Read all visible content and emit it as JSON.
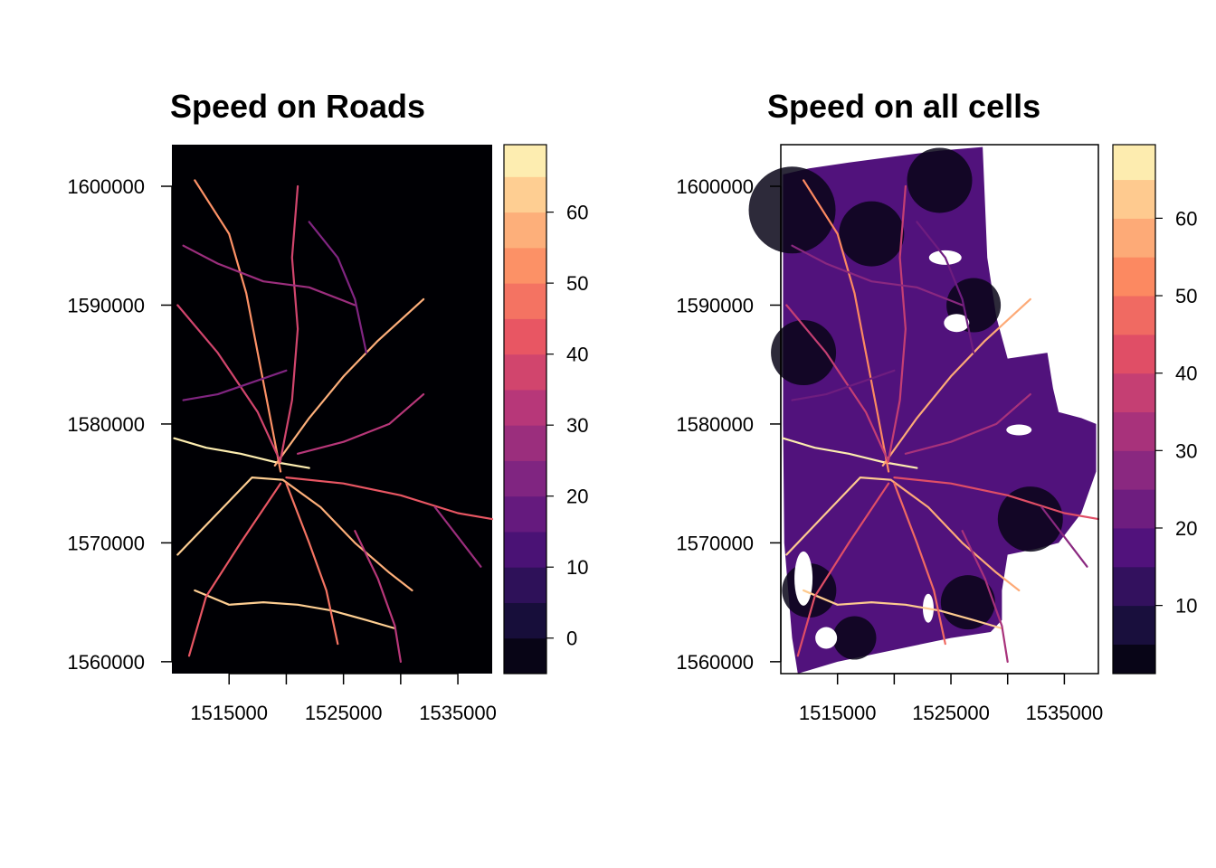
{
  "chart_data": [
    {
      "type": "heatmap",
      "title": "Speed on Roads",
      "xlabel": "",
      "ylabel": "",
      "x_ticks": [
        1515000,
        1525000,
        1535000
      ],
      "y_ticks": [
        1560000,
        1570000,
        1580000,
        1590000,
        1600000
      ],
      "x_tick_labels": [
        "1515000",
        "1525000",
        "1535000"
      ],
      "y_tick_labels": [
        "1560000",
        "1570000",
        "1580000",
        "1590000",
        "1600000"
      ],
      "xlim": [
        1510000,
        1538000
      ],
      "ylim": [
        1559000,
        1603500
      ],
      "background": "#000004",
      "legend": {
        "placement": "right",
        "range": [
          -5,
          69.5
        ],
        "breaks": [
          -5,
          0,
          5,
          10,
          15,
          20,
          25,
          30,
          35,
          40,
          45,
          50,
          55,
          60,
          65,
          69.5
        ],
        "tick_values": [
          0,
          10,
          20,
          30,
          40,
          50,
          60
        ],
        "tick_labels": [
          "0",
          "10",
          "20",
          "30",
          "40",
          "50",
          "60"
        ]
      },
      "raster": {
        "roads": [
          {
            "speed": 65,
            "points": [
              [
                1510200,
                1578800
              ],
              [
                1513000,
                1578000
              ],
              [
                1516000,
                1577500
              ],
              [
                1519000,
                1576800
              ],
              [
                1522000,
                1576300
              ]
            ]
          },
          {
            "speed": 60,
            "points": [
              [
                1510500,
                1569000
              ],
              [
                1514000,
                1572500
              ],
              [
                1517000,
                1575500
              ],
              [
                1519700,
                1575300
              ]
            ]
          },
          {
            "speed": 62,
            "points": [
              [
                1512000,
                1566000
              ],
              [
                1515000,
                1564800
              ],
              [
                1518000,
                1565000
              ],
              [
                1521000,
                1564800
              ],
              [
                1524000,
                1564300
              ],
              [
                1527000,
                1563500
              ],
              [
                1529500,
                1562800
              ]
            ]
          },
          {
            "speed": 55,
            "points": [
              [
                1519700,
                1575300
              ],
              [
                1523000,
                1573000
              ],
              [
                1526000,
                1570000
              ],
              [
                1529000,
                1567500
              ],
              [
                1531000,
                1566000
              ]
            ]
          },
          {
            "speed": 55,
            "points": [
              [
                1519000,
                1576500
              ],
              [
                1522000,
                1580500
              ],
              [
                1525000,
                1584000
              ],
              [
                1528000,
                1587000
              ],
              [
                1532000,
                1590500
              ]
            ]
          },
          {
            "speed": 50,
            "points": [
              [
                1519500,
                1576000
              ],
              [
                1518500,
                1581000
              ],
              [
                1517500,
                1586000
              ],
              [
                1516500,
                1591000
              ],
              [
                1515000,
                1596000
              ],
              [
                1512000,
                1600500
              ]
            ]
          },
          {
            "speed": 45,
            "points": [
              [
                1520000,
                1575000
              ],
              [
                1522000,
                1570000
              ],
              [
                1523500,
                1566000
              ],
              [
                1524500,
                1561500
              ]
            ]
          },
          {
            "speed": 40,
            "points": [
              [
                1519500,
                1575000
              ],
              [
                1516000,
                1570000
              ],
              [
                1513000,
                1565500
              ],
              [
                1511500,
                1560500
              ]
            ]
          },
          {
            "speed": 40,
            "points": [
              [
                1520000,
                1575500
              ],
              [
                1525000,
                1575000
              ],
              [
                1530000,
                1574000
              ],
              [
                1535000,
                1572500
              ],
              [
                1538000,
                1572000
              ]
            ]
          },
          {
            "speed": 35,
            "points": [
              [
                1519500,
                1577000
              ],
              [
                1520500,
                1582000
              ],
              [
                1521000,
                1588000
              ],
              [
                1520500,
                1594000
              ],
              [
                1521000,
                1600000
              ]
            ]
          },
          {
            "speed": 35,
            "points": [
              [
                1510500,
                1590000
              ],
              [
                1514000,
                1586000
              ],
              [
                1517500,
                1581000
              ],
              [
                1519500,
                1576800
              ]
            ]
          },
          {
            "speed": 30,
            "points": [
              [
                1521000,
                1577500
              ],
              [
                1525000,
                1578500
              ],
              [
                1529000,
                1580000
              ],
              [
                1532000,
                1582500
              ]
            ]
          },
          {
            "speed": 30,
            "points": [
              [
                1526000,
                1571000
              ],
              [
                1528000,
                1567000
              ],
              [
                1529500,
                1563000
              ],
              [
                1530000,
                1560000
              ]
            ]
          },
          {
            "speed": 25,
            "points": [
              [
                1511000,
                1595000
              ],
              [
                1514000,
                1593500
              ],
              [
                1518000,
                1592000
              ],
              [
                1522000,
                1591500
              ],
              [
                1526000,
                1590000
              ]
            ]
          },
          {
            "speed": 25,
            "points": [
              [
                1533000,
                1573000
              ],
              [
                1535000,
                1570500
              ],
              [
                1537000,
                1568000
              ]
            ]
          },
          {
            "speed": 20,
            "points": [
              [
                1511000,
                1582000
              ],
              [
                1514000,
                1582500
              ],
              [
                1517000,
                1583500
              ],
              [
                1520000,
                1584500
              ]
            ]
          },
          {
            "speed": 20,
            "points": [
              [
                1522000,
                1597000
              ],
              [
                1524500,
                1594000
              ],
              [
                1526000,
                1590500
              ],
              [
                1527000,
                1586000
              ]
            ]
          }
        ]
      }
    },
    {
      "type": "heatmap",
      "title": "Speed on all cells",
      "xlabel": "",
      "ylabel": "",
      "x_ticks": [
        1515000,
        1525000,
        1535000
      ],
      "y_ticks": [
        1560000,
        1570000,
        1580000,
        1590000,
        1600000
      ],
      "x_tick_labels": [
        "1515000",
        "1525000",
        "1535000"
      ],
      "y_tick_labels": [
        "1560000",
        "1570000",
        "1580000",
        "1590000",
        "1600000"
      ],
      "xlim": [
        1510000,
        1538000
      ],
      "ylim": [
        1559000,
        1603500
      ],
      "background": "#ffffff",
      "legend": {
        "placement": "right",
        "range": [
          1.2,
          69.5
        ],
        "breaks": [
          1.2,
          5,
          10,
          15,
          20,
          25,
          30,
          35,
          40,
          45,
          50,
          55,
          60,
          65,
          69.5
        ],
        "tick_values": [
          10,
          20,
          30,
          40,
          50,
          60
        ],
        "tick_labels": [
          "10",
          "20",
          "30",
          "40",
          "50",
          "60"
        ]
      },
      "raster": {
        "extent": [
          [
            1510200,
            1601000
          ],
          [
            1512500,
            1601500
          ],
          [
            1516000,
            1602000
          ],
          [
            1520000,
            1602500
          ],
          [
            1524000,
            1603000
          ],
          [
            1527800,
            1603300
          ],
          [
            1528200,
            1594000
          ],
          [
            1529000,
            1589000
          ],
          [
            1530000,
            1585500
          ],
          [
            1533500,
            1586000
          ],
          [
            1534000,
            1583000
          ],
          [
            1534500,
            1581000
          ],
          [
            1536500,
            1580500
          ],
          [
            1537800,
            1580000
          ],
          [
            1537800,
            1576000
          ],
          [
            1536500,
            1572500
          ],
          [
            1534500,
            1570000
          ],
          [
            1532500,
            1569500
          ],
          [
            1530000,
            1569000
          ],
          [
            1529500,
            1566000
          ],
          [
            1529500,
            1563500
          ],
          [
            1528500,
            1562500
          ],
          [
            1525000,
            1562000
          ],
          [
            1520000,
            1561000
          ],
          [
            1515000,
            1560000
          ],
          [
            1511500,
            1559000
          ],
          [
            1511000,
            1562000
          ],
          [
            1510300,
            1570000
          ],
          [
            1510200,
            1580000
          ],
          [
            1510200,
            1590000
          ]
        ],
        "fill_speed": 18,
        "roads_same_as_panel_1": true
      }
    }
  ]
}
